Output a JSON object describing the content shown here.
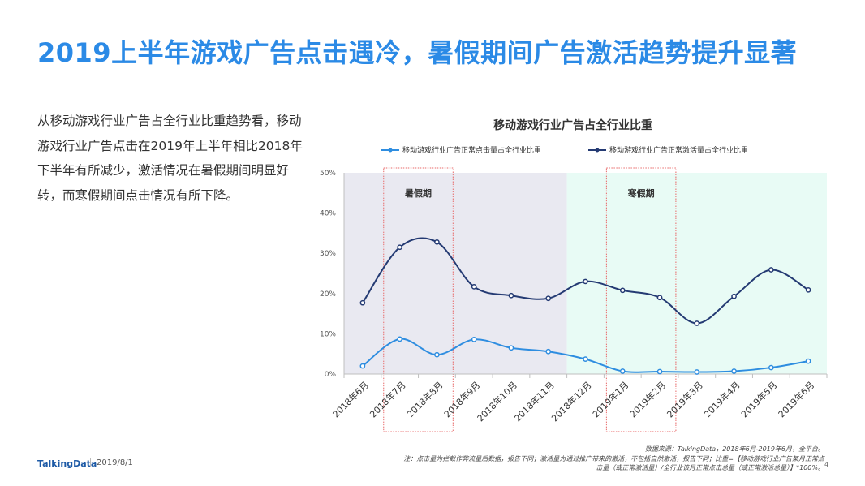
{
  "page": {
    "title": "2019上半年游戏广告点击遇冷，暑假期间广告激活趋势提升显著",
    "intro": "从移动游戏行业广告占全行业比重趋势看，移动游戏行业广告点击在2019年上半年相比2018年下半年有所减少，激活情况在暑假期间明显好转，而寒假期间点击情况有所下降。",
    "footer_logo": "TalkingData",
    "footer_date": "2019/8/1",
    "page_number": "4",
    "source_note": "数据来源：TalkingData，2018年6月-2019年6月，全平台。",
    "footnote_line1": "注：点击量为拦截作弊流量后数据，报告下同；激活量为通过推广带来的激活，不包括自然激活，报告下同；比重=【移动游戏行业广告某月正常点",
    "footnote_line2": "击量（或正常激活量）/全行业该月正常点击总量（或正常激活总量）】*100%。"
  },
  "colors": {
    "title": "#2b8ae6",
    "click_series": "#2e8de0",
    "activation_series": "#243a73",
    "summer_band": "#e9e9f1",
    "winter_band": "#e8fbf5",
    "highlight_box": "#e86a6a"
  },
  "chart_data": {
    "type": "line",
    "title": "移动游戏行业广告占全行业比重",
    "categories": [
      "2018年6月",
      "2018年7月",
      "2018年8月",
      "2018年9月",
      "2018年10月",
      "2018年11月",
      "2018年12月",
      "2019年1月",
      "2019年2月",
      "2019年3月",
      "2019年4月",
      "2019年5月",
      "2019年6月"
    ],
    "series": [
      {
        "name": "移动游戏行业广告正常点击量占全行业比重",
        "values": [
          2.0,
          8.7,
          4.8,
          8.6,
          6.5,
          5.6,
          3.7,
          0.7,
          0.6,
          0.5,
          0.7,
          1.6,
          3.2
        ]
      },
      {
        "name": "移动游戏行业广告正常激活量占全行业比重",
        "values": [
          17.7,
          31.5,
          32.8,
          21.7,
          19.5,
          18.8,
          23.0,
          20.8,
          19.0,
          12.6,
          19.3,
          25.9,
          20.9
        ]
      }
    ],
    "ylim": [
      0,
      50
    ],
    "yticks": [
      "0%",
      "10%",
      "20%",
      "30%",
      "40%",
      "50%"
    ],
    "legend_position": "top",
    "regions": [
      {
        "label": "暑假期",
        "from_index": 0,
        "to_index": 6,
        "highlight_from": 1,
        "highlight_to": 2
      },
      {
        "label": "寒假期",
        "from_index": 6,
        "to_index": 13,
        "highlight_from": 7,
        "highlight_to": 8
      }
    ],
    "grid": false
  }
}
